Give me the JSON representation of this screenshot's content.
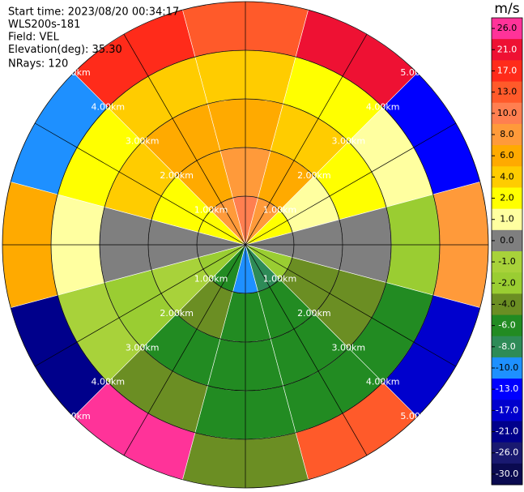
{
  "chart_data": {
    "type": "ppi",
    "header": [
      "Start time: 2023/08/20 00:34:17",
      "WLS200s-181",
      "Field: VEL",
      "Elevation(deg): 35.30",
      "NRays: 120"
    ],
    "colorbar_title": "m/s",
    "colorbar": {
      "ticks": [
        {
          "value": 26,
          "label": "26.0"
        },
        {
          "value": 21,
          "label": "21.0"
        },
        {
          "value": 17,
          "label": "17.0"
        },
        {
          "value": 13,
          "label": "13.0"
        },
        {
          "value": 10,
          "label": "10.0"
        },
        {
          "value": 8,
          "label": "8.0"
        },
        {
          "value": 6,
          "label": "6.0"
        },
        {
          "value": 4,
          "label": "4.0"
        },
        {
          "value": 2,
          "label": "2.0"
        },
        {
          "value": 1,
          "label": "1.0"
        },
        {
          "value": 0,
          "label": "0.0"
        },
        {
          "value": -1,
          "label": "-1.0"
        },
        {
          "value": -2,
          "label": "-2.0"
        },
        {
          "value": -4,
          "label": "-4.0"
        },
        {
          "value": -6,
          "label": "-6.0"
        },
        {
          "value": -8,
          "label": "-8.0"
        },
        {
          "value": -10,
          "label": "-10.0"
        },
        {
          "value": -13,
          "label": "-13.0"
        },
        {
          "value": -17,
          "label": "-17.0"
        },
        {
          "value": -21,
          "label": "-21.0"
        },
        {
          "value": -26,
          "label": "-26.0"
        },
        {
          "value": -30,
          "label": "-30.0"
        }
      ],
      "colors": [
        "#ff3399",
        "#ee1133",
        "#ff2b1a",
        "#ff5a2a",
        "#ff7f50",
        "#ff9a3a",
        "#ffaa00",
        "#ffcc00",
        "#ffff00",
        "#ffffa0",
        "#7f7f7f",
        "#a8d23a",
        "#9acd32",
        "#6b8e23",
        "#228b22",
        "#2e8b57",
        "#1e90ff",
        "#0000ff",
        "#0000cd",
        "#00008b",
        "#191970",
        "#0a0a50"
      ]
    },
    "rlim": [
      0,
      5
    ],
    "range_rings": [
      {
        "value": 1,
        "label": "1.00km"
      },
      {
        "value": 2,
        "label": "2.00km"
      },
      {
        "value": 3,
        "label": "3.00km"
      },
      {
        "value": 4,
        "label": "4.00km"
      },
      {
        "value": 5,
        "label": "5.00km"
      }
    ],
    "azimuths": [
      0,
      30,
      60,
      90,
      120,
      150,
      180,
      210,
      240,
      270,
      300,
      330
    ],
    "range_edges": [
      0,
      1,
      2,
      3,
      4,
      5
    ],
    "field": {
      "values": [
        [
          10,
          8,
          6,
          4,
          13
        ],
        [
          8,
          6,
          4,
          2,
          21
        ],
        [
          2,
          1,
          2,
          1,
          -13
        ],
        [
          0,
          0,
          0,
          -2,
          8
        ],
        [
          -2,
          -4,
          -4,
          -6,
          -17
        ],
        [
          -8,
          -6,
          -6,
          -6,
          13
        ],
        [
          -10,
          -6,
          -6,
          -6,
          -4
        ],
        [
          -6,
          -4,
          -6,
          -4,
          26
        ],
        [
          -2,
          -1,
          -2,
          -1,
          -21
        ],
        [
          0,
          0,
          0,
          1,
          6
        ],
        [
          2,
          2,
          4,
          2,
          -10
        ],
        [
          8,
          6,
          6,
          4,
          17
        ]
      ]
    }
  }
}
